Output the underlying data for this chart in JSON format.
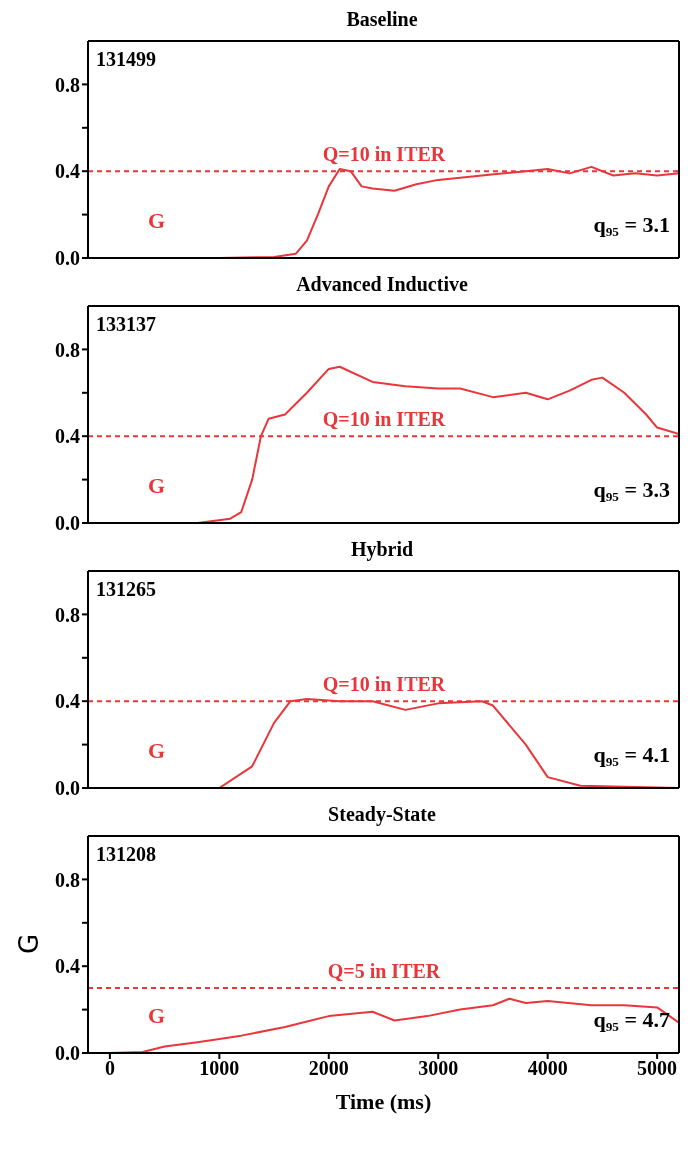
{
  "chart_data": [
    {
      "type": "line",
      "title": "Baseline",
      "xlim": [
        -200,
        5200
      ],
      "xticks": [
        0,
        1000,
        2000,
        3000,
        4000,
        5000
      ],
      "ylim": [
        0,
        1
      ],
      "yticks": [
        {
          "value": 0,
          "label": "0.0"
        },
        {
          "value": 0.2,
          "label": null
        },
        {
          "value": 0.4,
          "label": "0.4"
        },
        {
          "value": 0.6,
          "label": null
        },
        {
          "value": 0.8,
          "label": "0.8"
        }
      ],
      "tick_labels": "y",
      "marker": "none",
      "line_style": "solid",
      "series": [
        {
          "color": "#e8363a",
          "x": [
            0,
            1000,
            1500,
            1700,
            1800,
            1900,
            2000,
            2100,
            2200,
            2300,
            2400,
            2600,
            2800,
            3000,
            3200,
            3400,
            3600,
            3800,
            4000,
            4200,
            4400,
            4600,
            4800,
            5000,
            5200
          ],
          "values": [
            0,
            0,
            0.005,
            0.02,
            0.08,
            0.2,
            0.33,
            0.41,
            0.4,
            0.33,
            0.32,
            0.31,
            0.34,
            0.36,
            0.37,
            0.38,
            0.39,
            0.4,
            0.41,
            0.39,
            0.42,
            0.38,
            0.39,
            0.38,
            0.39
          ]
        }
      ],
      "ref_lines": [
        {
          "axis": "y",
          "value": 0.4,
          "color": "#e8363a",
          "line_style": "dashed"
        }
      ],
      "annotations": [
        "131499",
        "q₉₅ = 3.1",
        "Q=10 in ITER",
        "G"
      ]
    },
    {
      "type": "line",
      "title": "Advanced Inductive",
      "xlim": [
        -200,
        5200
      ],
      "xticks": [
        0,
        1000,
        2000,
        3000,
        4000,
        5000
      ],
      "ylim": [
        0,
        1
      ],
      "yticks": [
        {
          "value": 0,
          "label": "0.0"
        },
        {
          "value": 0.2,
          "label": null
        },
        {
          "value": 0.4,
          "label": "0.4"
        },
        {
          "value": 0.6,
          "label": null
        },
        {
          "value": 0.8,
          "label": "0.8"
        }
      ],
      "tick_labels": "y",
      "marker": "none",
      "line_style": "solid",
      "series": [
        {
          "color": "#e8363a",
          "x": [
            0,
            800,
            1100,
            1200,
            1300,
            1380,
            1450,
            1600,
            1800,
            2000,
            2100,
            2400,
            2700,
            3000,
            3200,
            3500,
            3800,
            4000,
            4200,
            4400,
            4500,
            4700,
            4900,
            5000,
            5200
          ],
          "values": [
            0,
            0,
            0.02,
            0.05,
            0.2,
            0.4,
            0.48,
            0.5,
            0.6,
            0.71,
            0.72,
            0.65,
            0.63,
            0.62,
            0.62,
            0.58,
            0.6,
            0.57,
            0.61,
            0.66,
            0.67,
            0.6,
            0.5,
            0.44,
            0.41
          ]
        }
      ],
      "ref_lines": [
        {
          "axis": "y",
          "value": 0.4,
          "color": "#e8363a",
          "line_style": "dashed"
        }
      ],
      "annotations": [
        "133137",
        "q₉₅ = 3.3",
        "Q=10 in ITER",
        "G"
      ]
    },
    {
      "type": "line",
      "title": "Hybrid",
      "xlim": [
        -200,
        5200
      ],
      "xticks": [
        0,
        1000,
        2000,
        3000,
        4000,
        5000
      ],
      "ylim": [
        0,
        1
      ],
      "yticks": [
        {
          "value": 0,
          "label": "0.0"
        },
        {
          "value": 0.2,
          "label": null
        },
        {
          "value": 0.4,
          "label": "0.4"
        },
        {
          "value": 0.6,
          "label": null
        },
        {
          "value": 0.8,
          "label": "0.8"
        }
      ],
      "tick_labels": "y",
      "marker": "none",
      "line_style": "solid",
      "series": [
        {
          "color": "#e8363a",
          "x": [
            0,
            1000,
            1300,
            1500,
            1650,
            1800,
            2100,
            2400,
            2700,
            3000,
            3400,
            3500,
            3800,
            4000,
            4300,
            5200
          ],
          "values": [
            0,
            0,
            0.1,
            0.3,
            0.4,
            0.41,
            0.4,
            0.4,
            0.36,
            0.39,
            0.4,
            0.38,
            0.2,
            0.05,
            0.01,
            0
          ]
        }
      ],
      "ref_lines": [
        {
          "axis": "y",
          "value": 0.4,
          "color": "#e8363a",
          "line_style": "dashed"
        }
      ],
      "annotations": [
        "131265",
        "q₉₅ = 4.1",
        "Q=10 in ITER",
        "G"
      ]
    },
    {
      "type": "line",
      "title": "Steady-State",
      "xlabel": "Time (ms)",
      "ylabel": "G",
      "xlim": [
        -200,
        5200
      ],
      "xticks": [
        0,
        1000,
        2000,
        3000,
        4000,
        5000
      ],
      "ylim": [
        0,
        1
      ],
      "yticks": [
        {
          "value": 0,
          "label": "0.0"
        },
        {
          "value": 0.2,
          "label": null
        },
        {
          "value": 0.4,
          "label": "0.4"
        },
        {
          "value": 0.6,
          "label": null
        },
        {
          "value": 0.8,
          "label": "0.8"
        }
      ],
      "marker": "none",
      "line_style": "solid",
      "series": [
        {
          "color": "#e8363a",
          "x": [
            0,
            300,
            500,
            800,
            1200,
            1600,
            2000,
            2400,
            2600,
            2900,
            3200,
            3500,
            3650,
            3800,
            4000,
            4400,
            4700,
            5000,
            5200
          ],
          "values": [
            0,
            0.005,
            0.03,
            0.05,
            0.08,
            0.12,
            0.17,
            0.19,
            0.15,
            0.17,
            0.2,
            0.22,
            0.25,
            0.23,
            0.24,
            0.22,
            0.22,
            0.21,
            0.14
          ]
        }
      ],
      "ref_lines": [
        {
          "axis": "y",
          "value": 0.3,
          "color": "#e8363a",
          "line_style": "dashed"
        }
      ],
      "annotations": [
        "131208",
        "q₉₅ = 4.7",
        "Q=5 in ITER",
        "G"
      ]
    }
  ]
}
